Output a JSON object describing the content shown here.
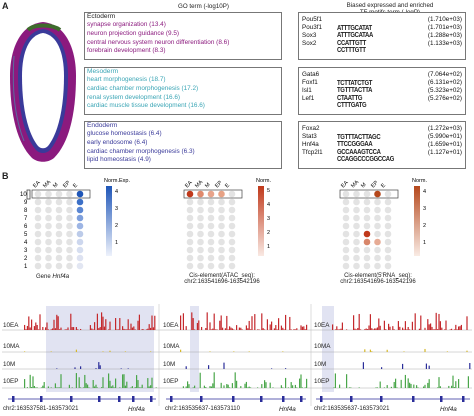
{
  "panel_a": {
    "letter": "A",
    "go_header": "GO term (-log10P)",
    "tf_header_line1": "Biased expressed and   enriched",
    "tf_header_line2": "TF motifs term (-logP)",
    "layers": [
      {
        "name": "Ectoderm",
        "color": "#8b1a7e",
        "terms": [
          "synapse organization (13.4)",
          "neuron projection guidance (9.5)",
          "central nervous system neuron differentiation (8.6)",
          "forebrain development (8.3)"
        ],
        "tfs": [
          {
            "name": "Pou5f1",
            "value": "(1.710e+03)",
            "logo": "ATTTGCATAT"
          },
          {
            "name": "Pou3f1",
            "value": "(1.701e+03)",
            "logo": "ATTTGCATAA"
          },
          {
            "name": "Sox3",
            "value": "(1.288e+03)",
            "logo": "CCATTGTT"
          },
          {
            "name": "Sox2",
            "value": "(1.133e+03)",
            "logo": "CCTTTGTT"
          }
        ]
      },
      {
        "name": "Mesoderm",
        "color": "#3aa5b5",
        "terms": [
          "heart morphogenesis (18.7)",
          "cardiac chamber morphogenesis (17.2)",
          "renal system development (16.6)",
          "cardiac muscle tissue development (16.6)"
        ],
        "tfs": [
          {
            "name": "Gata6",
            "value": "(7.064e+02)",
            "logo": "TCTTATCTGT"
          },
          {
            "name": "Foxf1",
            "value": "(6.131e+02)",
            "logo": "TGTTTACTTA"
          },
          {
            "name": "Isl1",
            "value": "(5.323e+02)",
            "logo": "CTAATTG"
          },
          {
            "name": "Lef1",
            "value": "(5.276e+02)",
            "logo": "CTTTGATG"
          }
        ]
      },
      {
        "name": "Endoderm",
        "color": "#3a3a9a",
        "terms": [
          "glucose homeostasis (6.4)",
          "early endosome (6.4)",
          "cardiac chamber morphogenesis (6.3)",
          "lipid homeostasis (4.9)"
        ],
        "tfs": [
          {
            "name": "Foxa2",
            "value": "(1.272e+03)",
            "logo": "TGTTTACTTAGC"
          },
          {
            "name": "Stat3",
            "value": "(5.990e+01)",
            "logo": "TTCCGGGAA"
          },
          {
            "name": "Hnf4a",
            "value": "(1.659e+01)",
            "logo": "GCCAAAGTCCA"
          },
          {
            "name": "Tfcp2l1",
            "value": "(1.127e+01)",
            "logo": "CCAGGCCCGGCCAG"
          }
        ]
      }
    ]
  },
  "panel_b": {
    "letter": "B",
    "row_labels": [
      "10",
      "9",
      "8",
      "7",
      "6",
      "5",
      "4",
      "3",
      "2",
      "1"
    ],
    "col_labels": [
      "EA",
      "MA",
      "M",
      "EP",
      "E"
    ],
    "plots": [
      {
        "legend_title": "Norm.Exp.",
        "caption_l1": "Gene",
        "caption_gene": "Hnf4a",
        "caption_l2": "",
        "scale": [
          "1",
          "2",
          "3",
          "4"
        ],
        "high": "#1f56b8",
        "low": "#e8eef8"
      },
      {
        "legend_title": "Norm.",
        "caption_l1": "Cis-element(ATAC_seq):",
        "caption_gene": "",
        "caption_l2": "chr2:163541696-163542196",
        "scale": [
          "1",
          "2",
          "3",
          "4",
          "5"
        ],
        "high": "#c0391b",
        "low": "#f7e4dd"
      },
      {
        "legend_title": "Norm.",
        "caption_l1": "Cis-element(5'RNA_seq):",
        "caption_gene": "",
        "caption_l2": "chr2:163541696-163542196",
        "scale": [
          "1",
          "2",
          "3",
          "4"
        ],
        "high": "#b5481c",
        "low": "#f7e4dd"
      }
    ]
  },
  "tracks": {
    "labels": [
      "10EA",
      "10MA",
      "10M",
      "10EP"
    ],
    "colors": {
      "10EA": "#c4282c",
      "10MA": "#d6b82a",
      "10M": "#2b2e9a",
      "10EP": "#4aa64a"
    },
    "regions": [
      {
        "coord": "chr2:163537581-163573021",
        "gene": "Hnf4a"
      },
      {
        "coord": "chr2:163535637-163573110",
        "gene": "Hnf4a"
      },
      {
        "coord": "chr2:163535637-163573021",
        "gene": "Hnf4a"
      }
    ]
  }
}
